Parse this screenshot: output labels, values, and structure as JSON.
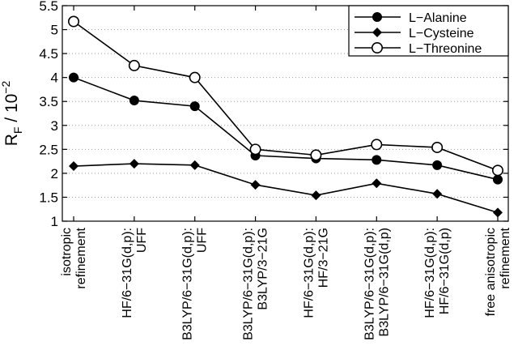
{
  "chart_data": {
    "type": "line",
    "title": "",
    "ylabel_main": "R",
    "ylabel_sub": "F",
    "ylabel_rest": " / 10",
    "ylabel_exp": "−2",
    "ylim": [
      1,
      5.5
    ],
    "yticks": [
      "1",
      "1.5",
      "2",
      "2.5",
      "3",
      "3.5",
      "4",
      "4.5",
      "5",
      "5.5"
    ],
    "grid": "dotted horizontal",
    "legend_position": "top-right",
    "categories": [
      [
        "isotropic",
        "refinement"
      ],
      [
        "HF/6−31G(d,p):",
        "UFF"
      ],
      [
        "B3LYP/6−31G(d,p):",
        "UFF"
      ],
      [
        "B3LYP/6−31G(d,p):",
        "B3LYP/3−21G"
      ],
      [
        "HF/6−31G(d,p):",
        "HF/3−21G"
      ],
      [
        "B3LYP/6−31G(d,p):",
        "B3LYP/6−31G(d,p)"
      ],
      [
        "HF/6−31G(d,p):",
        "HF/6−31G(d,p)"
      ],
      [
        "free anisotropic",
        "refinement"
      ]
    ],
    "series": [
      {
        "name": "L−Alanine",
        "marker": "filled-circle",
        "values": [
          4.0,
          3.52,
          3.4,
          2.37,
          2.31,
          2.28,
          2.17,
          1.87
        ]
      },
      {
        "name": "L−Cysteine",
        "marker": "filled-diamond",
        "values": [
          2.15,
          2.2,
          2.17,
          1.76,
          1.54,
          1.79,
          1.57,
          1.18
        ]
      },
      {
        "name": "L−Threonine",
        "marker": "open-circle",
        "values": [
          5.17,
          4.25,
          4.0,
          2.5,
          2.38,
          2.6,
          2.54,
          2.06
        ]
      }
    ]
  }
}
